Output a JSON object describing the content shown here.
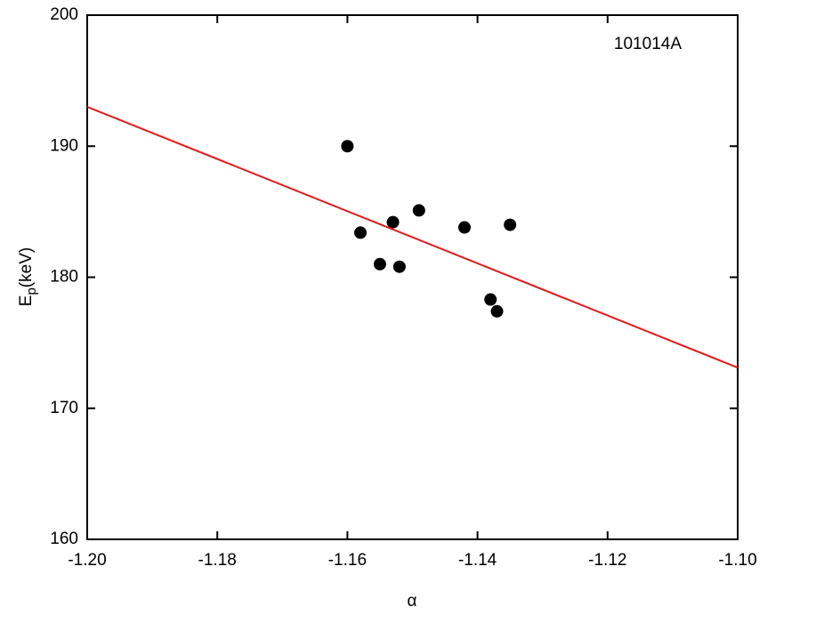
{
  "chart_data": {
    "type": "scatter",
    "annotation": "101014A",
    "x_label": "α",
    "y_label": {
      "main": "E",
      "sub": "p",
      "unit": "(keV)"
    },
    "xlim": [
      -1.2,
      -1.1
    ],
    "ylim": [
      160,
      200
    ],
    "xticks": [
      {
        "value": -1.2,
        "label": "-1.20"
      },
      -1.18,
      -1.16,
      -1.14,
      -1.12,
      {
        "value": -1.1,
        "label": "-1.10"
      }
    ],
    "yticks": [
      160,
      170,
      180,
      190,
      200
    ],
    "series": [
      {
        "kind": "points",
        "color": "#000000",
        "x": [
          -1.16,
          -1.158,
          -1.155,
          -1.153,
          -1.152,
          -1.149,
          -1.142,
          -1.138,
          -1.137,
          -1.135
        ],
        "values": [
          190.0,
          183.4,
          181.0,
          184.2,
          180.8,
          185.1,
          183.8,
          178.3,
          177.4,
          184.0
        ]
      },
      {
        "kind": "fit",
        "color": "#e41a1c",
        "x": [
          -1.2,
          -1.1
        ],
        "values": [
          193.0,
          173.1
        ]
      }
    ]
  }
}
